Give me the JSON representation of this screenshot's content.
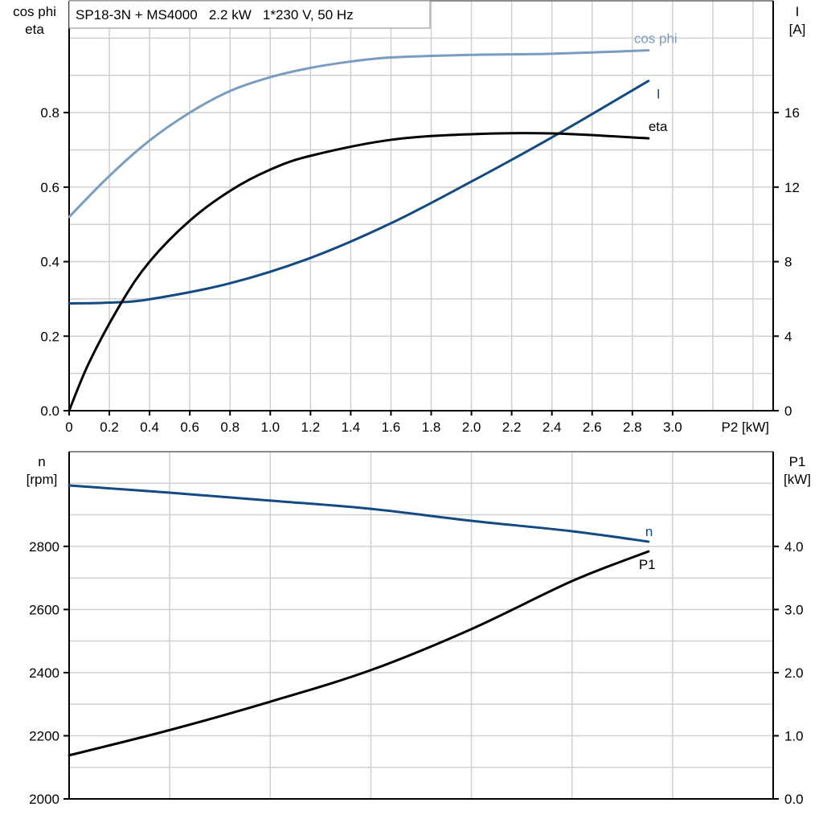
{
  "title": "SP18-3N + MS4000   2.2 kW   1*230 V, 50 Hz",
  "colors": {
    "cos_phi": "#7a9cc0",
    "I": "#134a82",
    "eta": "#000000",
    "n": "#134a82",
    "P1": "#000000",
    "grid": "#d0d0d0"
  },
  "chart_data": [
    {
      "type": "line",
      "xlabel": "P2 [kW]",
      "xlim": [
        0,
        3.5
      ],
      "x_ticks": [
        "0",
        "0.2",
        "0.4",
        "0.6",
        "0.8",
        "1.0",
        "1.2",
        "1.4",
        "1.6",
        "1.8",
        "2.0",
        "2.2",
        "2.4",
        "2.6",
        "2.8",
        "3.0"
      ],
      "ylabel_left": [
        "cos phi",
        "eta"
      ],
      "ylim_left": [
        0,
        1.1
      ],
      "y_ticks_left": [
        "0.0",
        "0.2",
        "0.4",
        "0.6",
        "0.8"
      ],
      "ylabel_right": [
        "I",
        "[A]"
      ],
      "ylim_right": [
        0,
        22
      ],
      "y_ticks_right": [
        "0",
        "4",
        "8",
        "12",
        "16"
      ],
      "grid": true,
      "series": [
        {
          "name": "cos phi",
          "axis": "left",
          "x": [
            0,
            0.2,
            0.4,
            0.6,
            0.8,
            1.0,
            1.2,
            1.4,
            1.6,
            2.0,
            2.4,
            2.88
          ],
          "y": [
            0.52,
            0.63,
            0.725,
            0.8,
            0.858,
            0.895,
            0.92,
            0.937,
            0.948,
            0.955,
            0.958,
            0.967
          ]
        },
        {
          "name": "I",
          "axis": "right",
          "x": [
            0,
            0.2,
            0.4,
            0.8,
            1.2,
            1.6,
            2.0,
            2.4,
            2.88
          ],
          "y": [
            5.76,
            5.8,
            5.98,
            6.84,
            8.2,
            10.06,
            12.3,
            14.67,
            17.7
          ]
        },
        {
          "name": "eta",
          "axis": "left",
          "x": [
            0,
            0.1,
            0.26,
            0.4,
            0.6,
            0.8,
            1.0,
            1.2,
            1.6,
            2.0,
            2.4,
            2.88
          ],
          "y": [
            0,
            0.13,
            0.29,
            0.4,
            0.51,
            0.59,
            0.647,
            0.684,
            0.727,
            0.742,
            0.744,
            0.731
          ]
        }
      ]
    },
    {
      "type": "line",
      "xlim": [
        0,
        3.5
      ],
      "ylabel_left": [
        "n",
        "[rpm]"
      ],
      "ylim_left": [
        2000,
        3100
      ],
      "y_ticks_left": [
        "2000",
        "2200",
        "2400",
        "2600",
        "2800"
      ],
      "ylabel_right": [
        "P1",
        "[kW]"
      ],
      "ylim_right": [
        0,
        5.5
      ],
      "y_ticks_right": [
        "0.0",
        "1.0",
        "2.0",
        "3.0",
        "4.0"
      ],
      "grid": true,
      "series": [
        {
          "name": "n",
          "axis": "left",
          "x": [
            0,
            0.5,
            1.0,
            1.5,
            2.0,
            2.5,
            2.88
          ],
          "y": [
            2993,
            2970,
            2945,
            2919,
            2881,
            2848,
            2815
          ]
        },
        {
          "name": "P1",
          "axis": "right",
          "x": [
            0,
            0.5,
            1.0,
            1.5,
            2.0,
            2.5,
            2.88
          ],
          "y": [
            0.69,
            1.09,
            1.54,
            2.04,
            2.69,
            3.45,
            3.92
          ]
        }
      ]
    }
  ]
}
